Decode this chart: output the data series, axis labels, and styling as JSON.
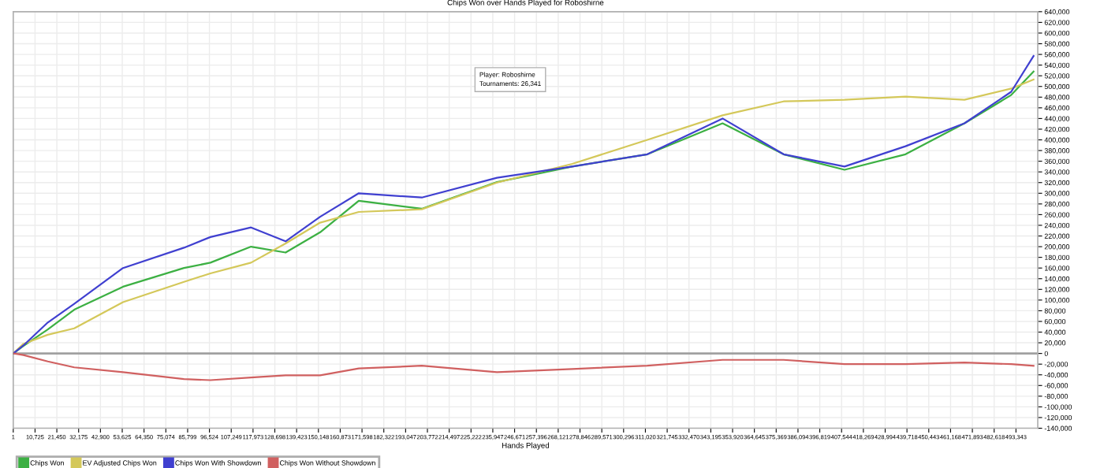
{
  "chart_data": {
    "type": "line",
    "title": "Chips Won over Hands Played for Roboshirne",
    "xlabel": "Hands Played",
    "x": [
      1,
      5000,
      17000,
      30000,
      54000,
      84000,
      97000,
      117000,
      134000,
      151000,
      170000,
      201000,
      238000,
      275000,
      312000,
      349000,
      379000,
      409000,
      439000,
      468000,
      491000,
      502000
    ],
    "series": [
      {
        "name": "Chips Won",
        "color": "#3cb043",
        "values": [
          0,
          14000,
          45000,
          82000,
          125000,
          160000,
          170000,
          200000,
          189000,
          227000,
          286000,
          271000,
          321000,
          350000,
          373000,
          431000,
          373000,
          344000,
          373000,
          431000,
          484000,
          528000
        ]
      },
      {
        "name": "EV Adjusted Chips Won",
        "color": "#d4c85a",
        "values": [
          0,
          18000,
          35000,
          47000,
          96000,
          134000,
          150000,
          170000,
          206000,
          245000,
          265000,
          270000,
          320000,
          355000,
          400000,
          446000,
          472000,
          475000,
          481000,
          475000,
          496000,
          513000
        ]
      },
      {
        "name": "Chips Won With Showdown",
        "color": "#4040d0",
        "values": [
          0,
          15000,
          58000,
          93000,
          160000,
          198000,
          218000,
          236000,
          210000,
          256000,
          300000,
          292000,
          329000,
          350000,
          373000,
          440000,
          373000,
          350000,
          388000,
          431000,
          490000,
          557000
        ]
      },
      {
        "name": "Chips Won Without Showdown",
        "color": "#d06060",
        "values": [
          0,
          -3000,
          -15000,
          -26000,
          -35000,
          -48000,
          -50000,
          -45000,
          -41000,
          -41000,
          -28000,
          -23000,
          -35000,
          -29000,
          -23000,
          -12000,
          -12000,
          -20000,
          -20000,
          -17000,
          -20000,
          -23000
        ]
      }
    ],
    "xlim": [
      1,
      504068
    ],
    "xticks": [
      {
        "value": 1,
        "label": "1"
      },
      {
        "value": 10725,
        "label": "10,725"
      },
      {
        "value": 21450,
        "label": "21,450"
      },
      {
        "value": 32175,
        "label": "32,175"
      },
      {
        "value": 42900,
        "label": "42,900"
      },
      {
        "value": 53625,
        "label": "53,625"
      },
      {
        "value": 64350,
        "label": "64,350"
      },
      {
        "value": 75074,
        "label": "75,074"
      },
      {
        "value": 85799,
        "label": "85,799"
      },
      {
        "value": 96524,
        "label": "96,524"
      },
      {
        "value": 107249,
        "label": "107,249"
      },
      {
        "value": 117973,
        "label": "117,973"
      },
      {
        "value": 128698,
        "label": "128,698"
      },
      {
        "value": 139423,
        "label": "139,423"
      },
      {
        "value": 150148,
        "label": "150,148"
      },
      {
        "value": 160873,
        "label": "160,873"
      },
      {
        "value": 171598,
        "label": "171,598"
      },
      {
        "value": 182322,
        "label": "182,322"
      },
      {
        "value": 193047,
        "label": "193,047"
      },
      {
        "value": 203772,
        "label": "203,772"
      },
      {
        "value": 214497,
        "label": "214,497"
      },
      {
        "value": 225222,
        "label": "225,222"
      },
      {
        "value": 235947,
        "label": "235,947"
      },
      {
        "value": 246671,
        "label": "246,671"
      },
      {
        "value": 257396,
        "label": "257,396"
      },
      {
        "value": 268121,
        "label": "268,121"
      },
      {
        "value": 278846,
        "label": "278,846"
      },
      {
        "value": 289571,
        "label": "289,571"
      },
      {
        "value": 300296,
        "label": "300,296"
      },
      {
        "value": 311020,
        "label": "311,020"
      },
      {
        "value": 321745,
        "label": "321,745"
      },
      {
        "value": 332470,
        "label": "332,470"
      },
      {
        "value": 343195,
        "label": "343,195"
      },
      {
        "value": 353920,
        "label": "353,920"
      },
      {
        "value": 364645,
        "label": "364,645"
      },
      {
        "value": 375369,
        "label": "375,369"
      },
      {
        "value": 386094,
        "label": "386,094"
      },
      {
        "value": 396819,
        "label": "396,819"
      },
      {
        "value": 407544,
        "label": "407,544"
      },
      {
        "value": 418269,
        "label": "418,269"
      },
      {
        "value": 428994,
        "label": "428,994"
      },
      {
        "value": 439718,
        "label": "439,718"
      },
      {
        "value": 450443,
        "label": "450,443"
      },
      {
        "value": 461168,
        "label": "461,168"
      },
      {
        "value": 471893,
        "label": "471,893"
      },
      {
        "value": 482618,
        "label": "482,618"
      },
      {
        "value": 493343,
        "label": "493,343"
      }
    ],
    "ylim": [
      -140000,
      640000
    ],
    "yticks": [
      {
        "value": -140000,
        "label": "-140,000"
      },
      {
        "value": -120000,
        "label": "-120,000"
      },
      {
        "value": -100000,
        "label": "-100,000"
      },
      {
        "value": -80000,
        "label": "-80,000"
      },
      {
        "value": -60000,
        "label": "-60,000"
      },
      {
        "value": -40000,
        "label": "-40,000"
      },
      {
        "value": -20000,
        "label": "-20,000"
      },
      {
        "value": 0,
        "label": "0"
      },
      {
        "value": 20000,
        "label": "20,000"
      },
      {
        "value": 40000,
        "label": "40,000"
      },
      {
        "value": 60000,
        "label": "60,000"
      },
      {
        "value": 80000,
        "label": "80,000"
      },
      {
        "value": 100000,
        "label": "100,000"
      },
      {
        "value": 120000,
        "label": "120,000"
      },
      {
        "value": 140000,
        "label": "140,000"
      },
      {
        "value": 160000,
        "label": "160,000"
      },
      {
        "value": 180000,
        "label": "180,000"
      },
      {
        "value": 200000,
        "label": "200,000"
      },
      {
        "value": 220000,
        "label": "220,000"
      },
      {
        "value": 240000,
        "label": "240,000"
      },
      {
        "value": 260000,
        "label": "260,000"
      },
      {
        "value": 280000,
        "label": "280,000"
      },
      {
        "value": 300000,
        "label": "300,000"
      },
      {
        "value": 320000,
        "label": "320,000"
      },
      {
        "value": 340000,
        "label": "340,000"
      },
      {
        "value": 360000,
        "label": "360,000"
      },
      {
        "value": 380000,
        "label": "380,000"
      },
      {
        "value": 400000,
        "label": "400,000"
      },
      {
        "value": 420000,
        "label": "420,000"
      },
      {
        "value": 440000,
        "label": "440,000"
      },
      {
        "value": 460000,
        "label": "460,000"
      },
      {
        "value": 480000,
        "label": "480,000"
      },
      {
        "value": 500000,
        "label": "500,000"
      },
      {
        "value": 520000,
        "label": "520,000"
      },
      {
        "value": 540000,
        "label": "540,000"
      },
      {
        "value": 560000,
        "label": "560,000"
      },
      {
        "value": 580000,
        "label": "580,000"
      },
      {
        "value": 600000,
        "label": "600,000"
      },
      {
        "value": 620000,
        "label": "620,000"
      },
      {
        "value": 640000,
        "label": "640,000"
      }
    ],
    "ref_lines": [
      {
        "axis": "y",
        "value": 0,
        "color": "#a0a0a0"
      }
    ],
    "annotations": [
      "Player: Roboshirne\nTournaments: 26,341"
    ],
    "grid": true,
    "legend": "bottom left",
    "marker": "none",
    "line_style": "solid"
  }
}
